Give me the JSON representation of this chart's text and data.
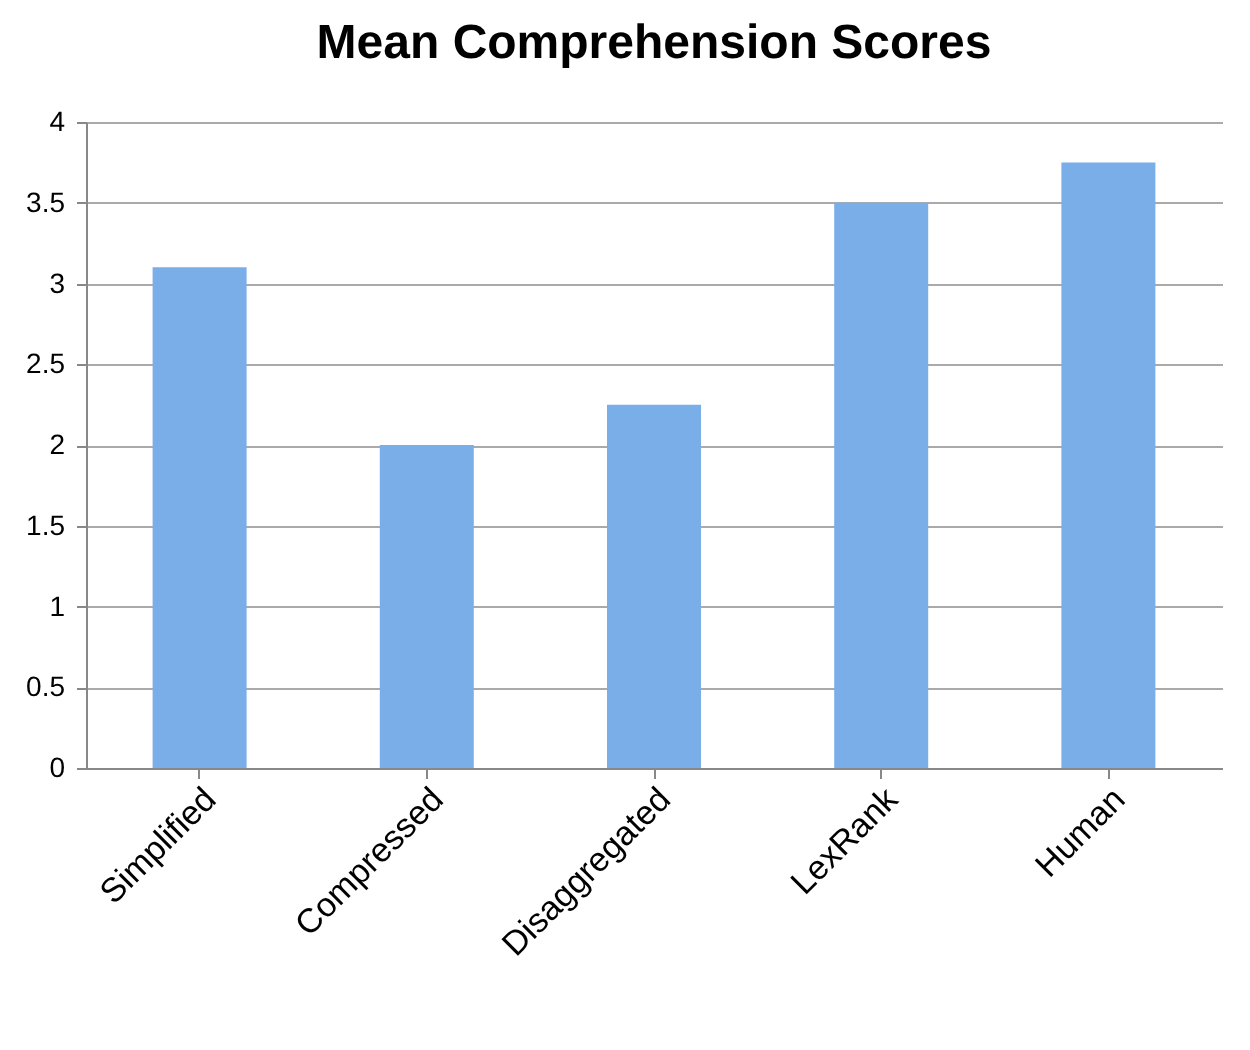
{
  "chart_data": {
    "type": "bar",
    "title": "Mean Comprehension Scores",
    "categories": [
      "Simplified",
      "Compressed",
      "Disaggregated",
      "LexRank",
      "Human"
    ],
    "values": [
      3.1,
      2.0,
      2.25,
      3.5,
      3.75
    ],
    "color": "#7aaee9",
    "ylim": [
      0,
      4
    ],
    "yticks": [
      0,
      0.5,
      1,
      1.5,
      2,
      2.5,
      3,
      3.5,
      4
    ],
    "grid": "y"
  }
}
